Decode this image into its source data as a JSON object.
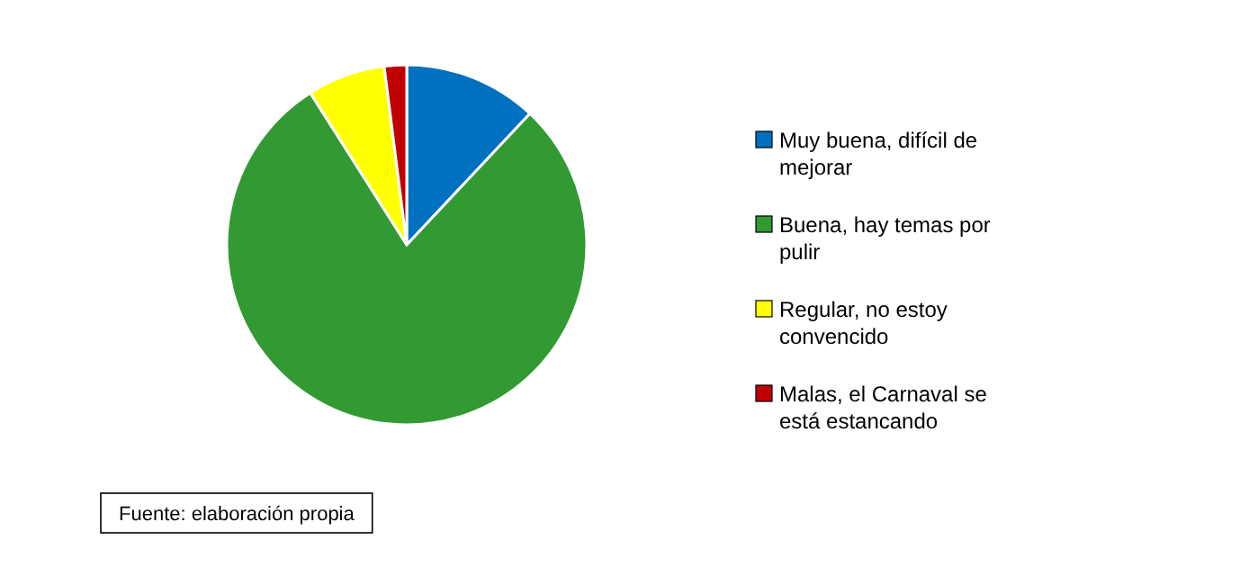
{
  "chart_data": {
    "type": "pie",
    "categories": [
      "Muy buena, difícil de mejorar",
      "Buena, hay temas por pulir",
      "Regular, no estoy convencido",
      "Malas, el Carnaval se está estancando"
    ],
    "values": [
      12,
      79,
      7,
      2
    ],
    "colors": [
      "#0070c0",
      "#339933",
      "#ffff00",
      "#c00000"
    ],
    "legend": "right",
    "annotations": [
      "Fuente: elaboración propia"
    ]
  }
}
